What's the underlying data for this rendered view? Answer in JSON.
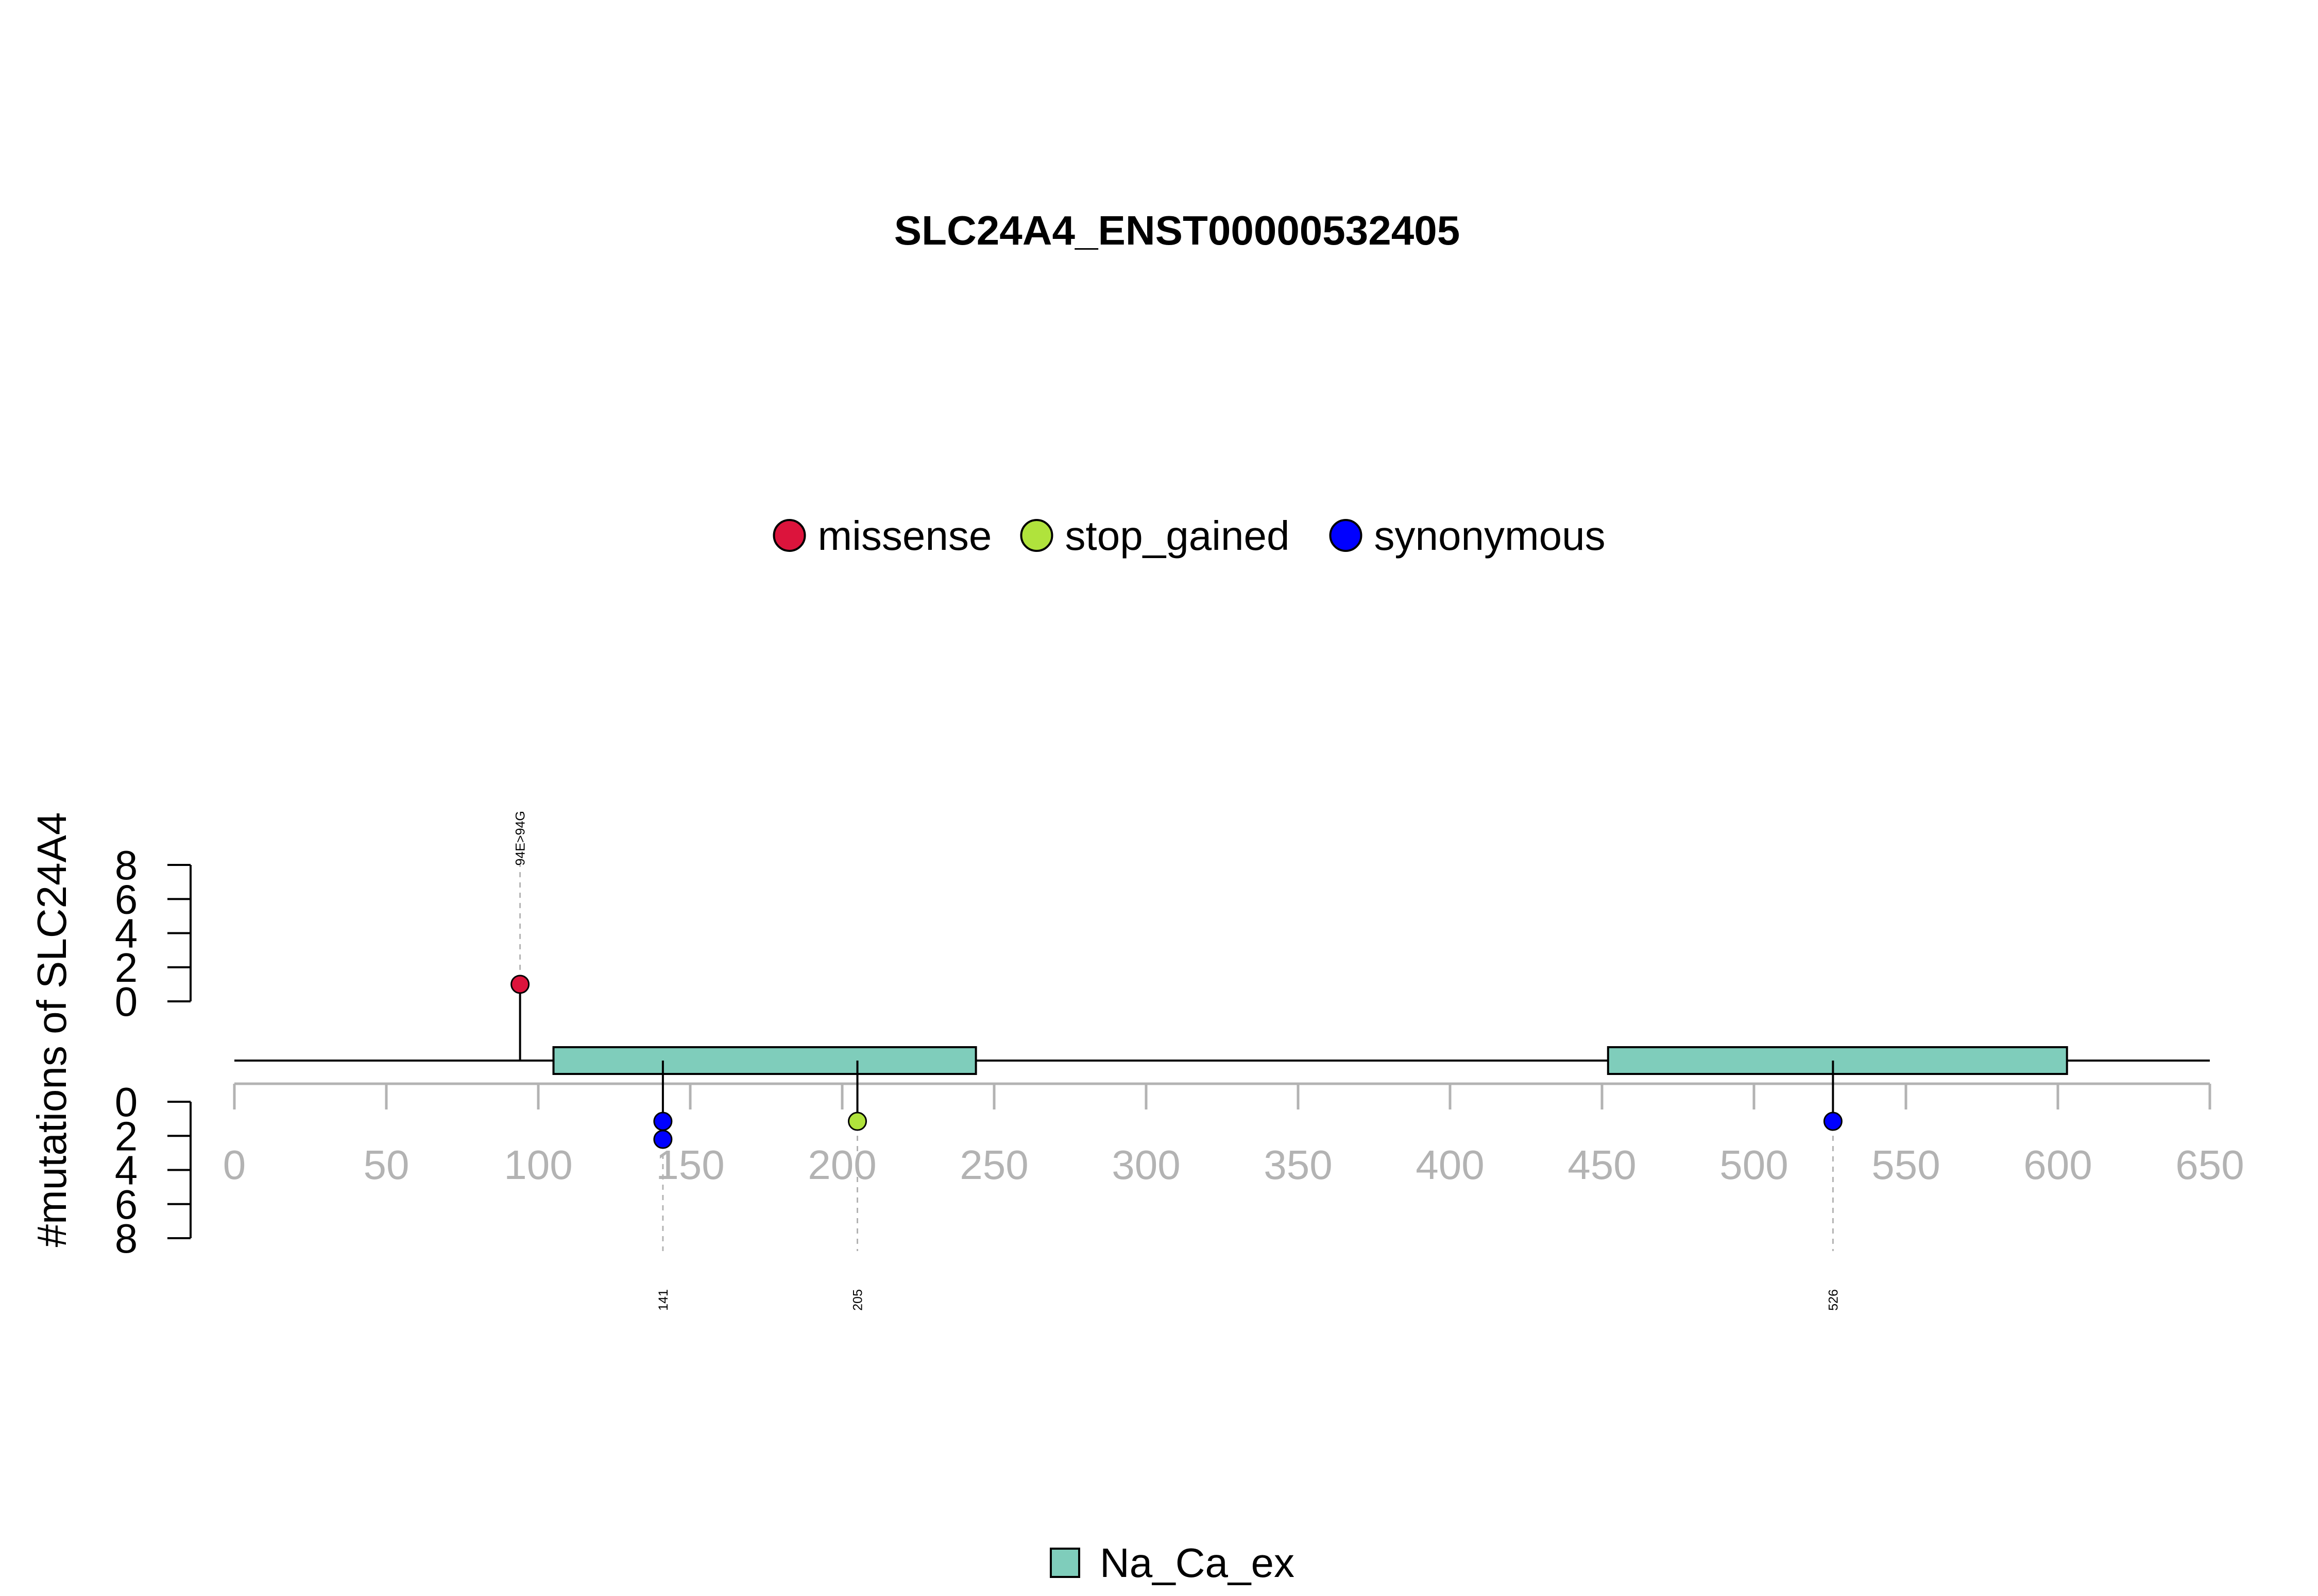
{
  "chart_data": {
    "type": "lollipop",
    "title": "SLC24A4_ENST00000532405",
    "ylabel": "#mutations of SLC24A4",
    "xlim": [
      0,
      650
    ],
    "x_ticks": [
      0,
      50,
      100,
      150,
      200,
      250,
      300,
      350,
      400,
      450,
      500,
      550,
      600,
      650
    ],
    "y_top_ticks": [
      0,
      2,
      4,
      6,
      8
    ],
    "y_bottom_ticks": [
      0,
      2,
      4,
      6,
      8
    ],
    "y_range": [
      0,
      8
    ],
    "legend": [
      {
        "name": "missense",
        "color": "#dc143c"
      },
      {
        "name": "stop_gained",
        "color": "#b0e33c"
      },
      {
        "name": "synonymous",
        "color": "#0000ff"
      }
    ],
    "domain_legend": [
      {
        "name": "Na_Ca_ex",
        "color": "#7fcdbb"
      }
    ],
    "domains": [
      {
        "name": "Na_Ca_ex",
        "start": 105,
        "end": 244
      },
      {
        "name": "Na_Ca_ex",
        "start": 452,
        "end": 603
      }
    ],
    "mutations_top": [
      {
        "position": 94,
        "count": 1,
        "type": "missense",
        "label": "94E>94G"
      }
    ],
    "mutations_bottom": [
      {
        "position": 141,
        "count": 2,
        "type": "synonymous",
        "label": "141"
      },
      {
        "position": 205,
        "count": 1,
        "type": "stop_gained",
        "label": "205"
      },
      {
        "position": 526,
        "count": 1,
        "type": "synonymous",
        "label": "526"
      }
    ]
  }
}
